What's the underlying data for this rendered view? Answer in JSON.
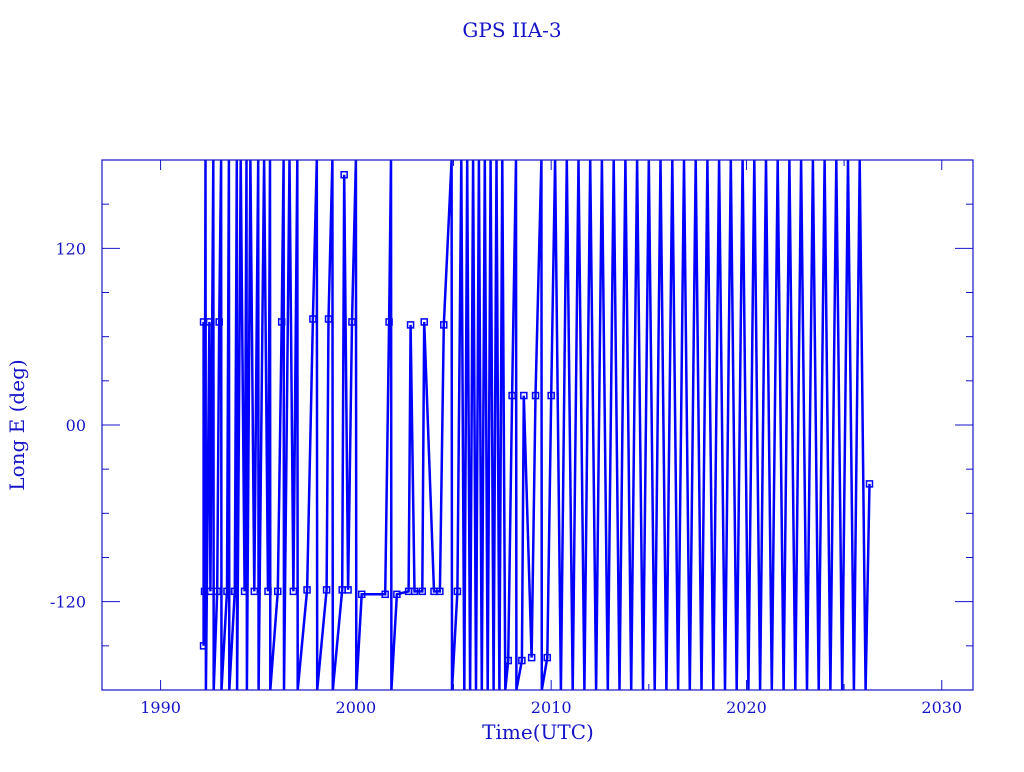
{
  "chart_data": {
    "type": "line",
    "title": "GPS IIA-3",
    "xlabel": "Time(UTC)",
    "ylabel": "Long E (deg)",
    "xlim": [
      1987,
      2031.6
    ],
    "ylim": [
      -180,
      180
    ],
    "x_ticks": [
      1990,
      2000,
      2010,
      2020,
      2030
    ],
    "x_tick_labels": [
      "1990",
      "2000",
      "2010",
      "2020",
      "2030"
    ],
    "y_ticks": [
      -120,
      0,
      120
    ],
    "y_tick_labels": [
      "-120",
      "00",
      "120"
    ],
    "grid": false,
    "color": "#0000ff",
    "axis_color": "#1414c8",
    "series": [
      {
        "points": [
          [
            1992.2,
            -150
          ],
          [
            1992.2,
            70
          ],
          [
            1992.25,
            -113
          ],
          [
            1992.3,
            180
          ],
          [
            1992.32,
            -180
          ],
          [
            1992.5,
            70
          ],
          [
            1992.55,
            -113
          ],
          [
            1992.7,
            180
          ],
          [
            1992.72,
            -180
          ],
          [
            1992.9,
            -113
          ],
          [
            1993.0,
            70
          ],
          [
            1993.1,
            180
          ],
          [
            1993.12,
            -180
          ],
          [
            1993.4,
            -113
          ],
          [
            1993.5,
            180
          ],
          [
            1993.52,
            -180
          ],
          [
            1993.8,
            -113
          ],
          [
            1993.9,
            180
          ],
          [
            1993.92,
            -180
          ],
          [
            1994.1,
            180
          ],
          [
            1994.3,
            -113
          ],
          [
            1994.4,
            180
          ],
          [
            1994.42,
            -180
          ],
          [
            1994.6,
            180
          ],
          [
            1994.8,
            -113
          ],
          [
            1995.0,
            180
          ],
          [
            1995.02,
            -180
          ],
          [
            1995.3,
            180
          ],
          [
            1995.5,
            -113
          ],
          [
            1995.6,
            180
          ],
          [
            1995.62,
            -180
          ],
          [
            1996.0,
            -113
          ],
          [
            1996.2,
            70
          ],
          [
            1996.3,
            180
          ],
          [
            1996.32,
            -180
          ],
          [
            1996.6,
            180
          ],
          [
            1996.8,
            -113
          ],
          [
            1997.0,
            180
          ],
          [
            1997.02,
            -180
          ],
          [
            1997.5,
            -112
          ],
          [
            1997.8,
            72
          ],
          [
            1998.0,
            180
          ],
          [
            1998.02,
            -180
          ],
          [
            1998.5,
            -112
          ],
          [
            1998.6,
            72
          ],
          [
            1998.8,
            180
          ],
          [
            1998.82,
            -180
          ],
          [
            1999.3,
            -112
          ],
          [
            1999.4,
            170
          ],
          [
            1999.6,
            -112
          ],
          [
            1999.8,
            70
          ],
          [
            2000.0,
            180
          ],
          [
            2000.02,
            -180
          ],
          [
            2000.3,
            -115
          ],
          [
            2001.5,
            -115
          ],
          [
            2001.7,
            70
          ],
          [
            2001.8,
            180
          ],
          [
            2001.82,
            -180
          ],
          [
            2002.1,
            -115
          ],
          [
            2002.7,
            -113
          ],
          [
            2002.8,
            68
          ],
          [
            2003.0,
            -113
          ],
          [
            2003.4,
            -113
          ],
          [
            2003.5,
            70
          ],
          [
            2004.0,
            -113
          ],
          [
            2004.3,
            -113
          ],
          [
            2004.5,
            68
          ],
          [
            2004.9,
            180
          ],
          [
            2004.92,
            -180
          ],
          [
            2005.2,
            -113
          ],
          [
            2005.4,
            180
          ],
          [
            2005.55,
            -180
          ],
          [
            2005.7,
            180
          ],
          [
            2005.85,
            -180
          ],
          [
            2006.0,
            180
          ],
          [
            2006.15,
            -180
          ],
          [
            2006.3,
            180
          ],
          [
            2006.45,
            -180
          ],
          [
            2006.6,
            180
          ],
          [
            2006.75,
            -180
          ],
          [
            2006.9,
            180
          ],
          [
            2007.05,
            -180
          ],
          [
            2007.2,
            180
          ],
          [
            2007.35,
            -180
          ],
          [
            2007.5,
            180
          ],
          [
            2007.65,
            -180
          ],
          [
            2007.8,
            -160
          ],
          [
            2008.0,
            20
          ],
          [
            2008.2,
            180
          ],
          [
            2008.22,
            -180
          ],
          [
            2008.5,
            -160
          ],
          [
            2008.6,
            20
          ],
          [
            2009.0,
            -158
          ],
          [
            2009.2,
            20
          ],
          [
            2009.5,
            180
          ],
          [
            2009.52,
            -180
          ],
          [
            2009.8,
            -158
          ],
          [
            2010.0,
            20
          ],
          [
            2010.2,
            180
          ],
          [
            2010.5,
            -180
          ],
          [
            2010.8,
            180
          ],
          [
            2011.1,
            -180
          ],
          [
            2011.4,
            180
          ],
          [
            2011.7,
            -180
          ],
          [
            2012.0,
            180
          ],
          [
            2012.3,
            -180
          ],
          [
            2012.6,
            180
          ],
          [
            2012.9,
            -180
          ],
          [
            2013.2,
            180
          ],
          [
            2013.5,
            -180
          ],
          [
            2013.8,
            180
          ],
          [
            2014.1,
            -180
          ],
          [
            2014.4,
            180
          ],
          [
            2014.7,
            -180
          ],
          [
            2015.0,
            180
          ],
          [
            2015.3,
            -180
          ],
          [
            2015.6,
            180
          ],
          [
            2015.9,
            -180
          ],
          [
            2016.2,
            180
          ],
          [
            2016.5,
            -180
          ],
          [
            2016.8,
            180
          ],
          [
            2017.1,
            -180
          ],
          [
            2017.4,
            180
          ],
          [
            2017.7,
            -180
          ],
          [
            2018.0,
            180
          ],
          [
            2018.3,
            -180
          ],
          [
            2018.6,
            180
          ],
          [
            2018.9,
            -180
          ],
          [
            2019.2,
            180
          ],
          [
            2019.5,
            -180
          ],
          [
            2019.8,
            180
          ],
          [
            2020.1,
            -180
          ],
          [
            2020.4,
            180
          ],
          [
            2020.7,
            -180
          ],
          [
            2021.0,
            180
          ],
          [
            2021.3,
            -180
          ],
          [
            2021.6,
            180
          ],
          [
            2021.9,
            -180
          ],
          [
            2022.2,
            180
          ],
          [
            2022.5,
            -180
          ],
          [
            2022.8,
            180
          ],
          [
            2023.1,
            -180
          ],
          [
            2023.4,
            180
          ],
          [
            2023.7,
            -180
          ],
          [
            2024.0,
            180
          ],
          [
            2024.3,
            -180
          ],
          [
            2024.6,
            180
          ],
          [
            2024.9,
            -180
          ],
          [
            2025.2,
            180
          ],
          [
            2025.5,
            -180
          ],
          [
            2025.8,
            180
          ],
          [
            2026.1,
            -180
          ],
          [
            2026.3,
            -40
          ]
        ]
      }
    ]
  }
}
